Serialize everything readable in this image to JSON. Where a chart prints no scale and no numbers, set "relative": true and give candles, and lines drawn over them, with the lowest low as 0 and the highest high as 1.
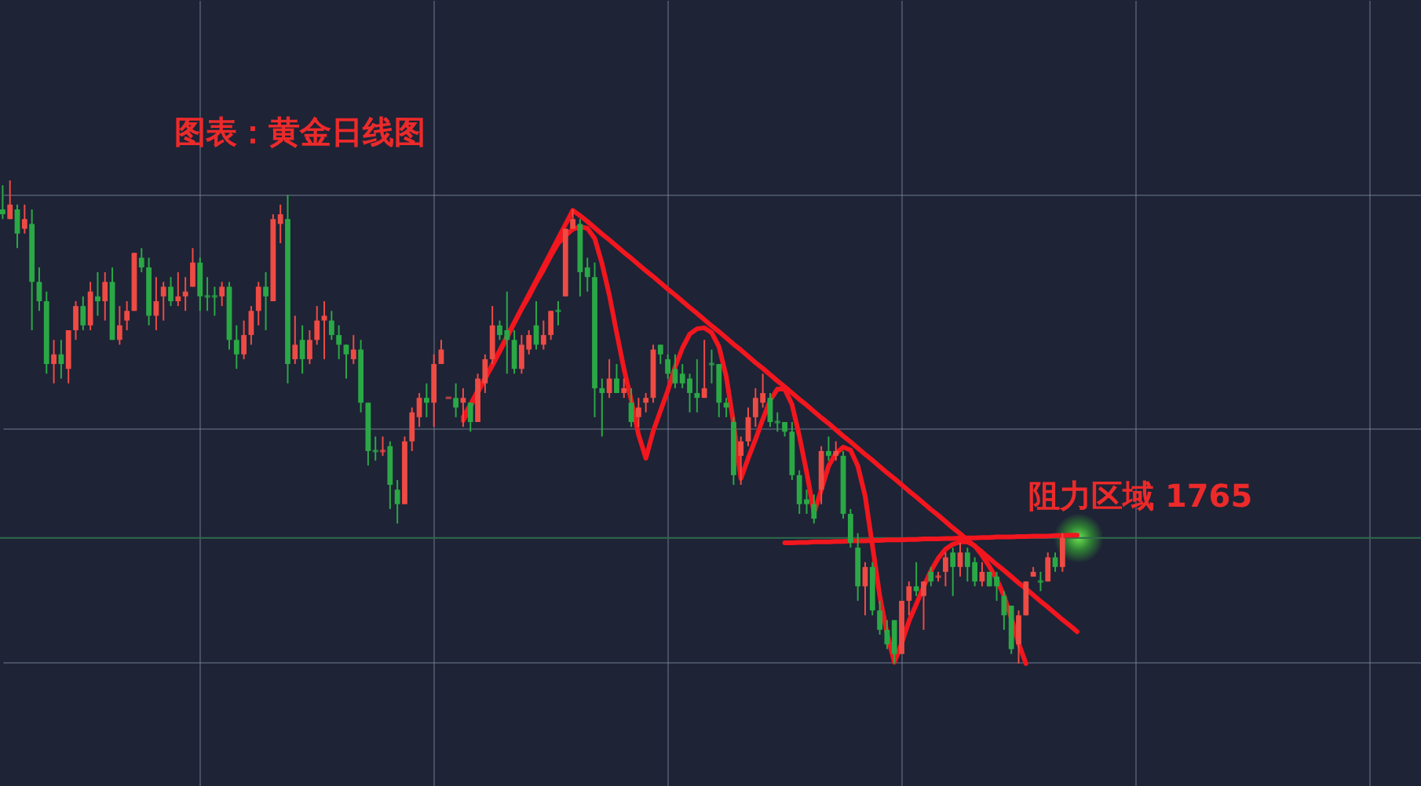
{
  "chart_data": {
    "type": "candlestick",
    "title": "图表：黄金日线图",
    "relative": true,
    "grid": true,
    "categories": [
      null,
      null,
      null,
      null,
      null,
      null,
      null,
      null,
      null,
      null,
      null,
      null,
      null,
      null,
      null,
      null,
      null,
      null,
      null,
      null,
      null,
      null,
      null,
      null,
      null,
      null,
      null,
      null,
      null,
      null,
      null,
      null,
      null,
      null,
      null,
      null,
      null,
      null,
      null,
      null,
      null,
      null,
      null,
      null,
      null,
      null,
      null,
      null,
      null,
      null,
      null,
      null,
      null,
      null,
      null,
      null,
      null,
      null,
      null,
      null,
      null,
      null,
      null,
      null,
      null,
      null,
      null,
      null,
      null,
      null,
      null,
      null,
      null,
      null,
      null,
      null,
      null,
      null,
      null,
      null,
      null,
      null,
      null,
      null,
      null,
      null,
      null,
      null,
      null,
      null,
      null,
      null,
      null,
      null,
      null,
      null,
      null,
      null,
      null,
      null,
      null,
      null,
      null,
      null,
      null,
      null,
      null,
      null,
      null,
      null,
      null,
      null,
      null,
      null,
      null,
      null,
      null,
      null,
      null,
      null,
      null,
      null,
      null,
      null,
      null,
      null,
      null,
      null,
      null,
      null,
      null,
      null,
      null,
      null,
      null,
      null,
      null,
      null,
      null,
      null,
      null,
      null,
      null,
      null,
      null,
      null,
      null,
      null
    ],
    "ohlc": [
      [
        0.94,
        0.99,
        0.92,
        0.93
      ],
      [
        0.92,
        1.0,
        0.92,
        0.95
      ],
      [
        0.94,
        0.95,
        0.86,
        0.89
      ],
      [
        0.9,
        0.95,
        0.89,
        0.92
      ],
      [
        0.91,
        0.94,
        0.69,
        0.79
      ],
      [
        0.79,
        0.82,
        0.73,
        0.75
      ],
      [
        0.75,
        0.77,
        0.6,
        0.62
      ],
      [
        0.62,
        0.67,
        0.58,
        0.64
      ],
      [
        0.64,
        0.67,
        0.59,
        0.62
      ],
      [
        0.61,
        0.69,
        0.58,
        0.69
      ],
      [
        0.69,
        0.75,
        0.67,
        0.74
      ],
      [
        0.74,
        0.76,
        0.69,
        0.7
      ],
      [
        0.7,
        0.79,
        0.69,
        0.77
      ],
      [
        0.76,
        0.81,
        0.72,
        0.75
      ],
      [
        0.75,
        0.81,
        0.71,
        0.79
      ],
      [
        0.79,
        0.82,
        0.67,
        0.67
      ],
      [
        0.67,
        0.74,
        0.66,
        0.7
      ],
      [
        0.71,
        0.75,
        0.69,
        0.73
      ],
      [
        0.73,
        0.85,
        0.73,
        0.85
      ],
      [
        0.84,
        0.86,
        0.81,
        0.82
      ],
      [
        0.82,
        0.84,
        0.7,
        0.72
      ],
      [
        0.72,
        0.8,
        0.69,
        0.75
      ],
      [
        0.76,
        0.79,
        0.71,
        0.78
      ],
      [
        0.78,
        0.8,
        0.74,
        0.75
      ],
      [
        0.75,
        0.81,
        0.74,
        0.76
      ],
      [
        0.76,
        0.8,
        0.73,
        0.77
      ],
      [
        0.78,
        0.86,
        0.78,
        0.83
      ],
      [
        0.83,
        0.84,
        0.73,
        0.76
      ],
      [
        0.76,
        0.8,
        0.73,
        0.76
      ],
      [
        0.76,
        0.78,
        0.72,
        0.76
      ],
      [
        0.76,
        0.79,
        0.74,
        0.78
      ],
      [
        0.78,
        0.79,
        0.65,
        0.67
      ],
      [
        0.67,
        0.7,
        0.61,
        0.64
      ],
      [
        0.64,
        0.71,
        0.63,
        0.68
      ],
      [
        0.68,
        0.74,
        0.66,
        0.73
      ],
      [
        0.73,
        0.79,
        0.7,
        0.78
      ],
      [
        0.78,
        0.81,
        0.69,
        0.76
      ],
      [
        0.75,
        0.93,
        0.75,
        0.92
      ],
      [
        0.91,
        0.95,
        0.87,
        0.93
      ],
      [
        0.92,
        0.97,
        0.58,
        0.62
      ],
      [
        0.63,
        0.72,
        0.62,
        0.66
      ],
      [
        0.67,
        0.7,
        0.6,
        0.63
      ],
      [
        0.63,
        0.69,
        0.62,
        0.67
      ],
      [
        0.67,
        0.74,
        0.66,
        0.71
      ],
      [
        0.71,
        0.75,
        0.63,
        0.72
      ],
      [
        0.71,
        0.73,
        0.67,
        0.68
      ],
      [
        0.68,
        0.7,
        0.63,
        0.66
      ],
      [
        0.66,
        0.66,
        0.59,
        0.64
      ],
      [
        0.63,
        0.68,
        0.62,
        0.65
      ],
      [
        0.65,
        0.67,
        0.52,
        0.54
      ],
      [
        0.54,
        0.54,
        0.41,
        0.44
      ],
      [
        0.44,
        0.47,
        0.42,
        0.44
      ],
      [
        0.44,
        0.47,
        0.43,
        0.44
      ],
      [
        0.45,
        0.46,
        0.32,
        0.37
      ],
      [
        0.36,
        0.38,
        0.29,
        0.33
      ],
      [
        0.33,
        0.47,
        0.33,
        0.46
      ],
      [
        0.46,
        0.53,
        0.44,
        0.52
      ],
      [
        0.51,
        0.56,
        0.49,
        0.55
      ],
      [
        0.55,
        0.58,
        0.51,
        0.54
      ],
      [
        0.54,
        0.64,
        0.49,
        0.62
      ],
      [
        0.62,
        0.67,
        0.62,
        0.65
      ],
      [
        0.55,
        0.55,
        0.55,
        0.55
      ],
      [
        0.55,
        0.58,
        0.51,
        0.53
      ],
      [
        0.54,
        0.57,
        0.49,
        0.55
      ],
      [
        0.54,
        0.54,
        0.48,
        0.5
      ],
      [
        0.5,
        0.6,
        0.5,
        0.59
      ],
      [
        0.58,
        0.64,
        0.56,
        0.63
      ],
      [
        0.63,
        0.74,
        0.62,
        0.7
      ],
      [
        0.7,
        0.71,
        0.67,
        0.68
      ],
      [
        0.69,
        0.77,
        0.6,
        0.67
      ],
      [
        0.67,
        0.69,
        0.6,
        0.61
      ],
      [
        0.61,
        0.68,
        0.6,
        0.66
      ],
      [
        0.65,
        0.69,
        0.64,
        0.68
      ],
      [
        0.7,
        0.75,
        0.65,
        0.66
      ],
      [
        0.66,
        0.71,
        0.65,
        0.68
      ],
      [
        0.68,
        0.73,
        0.67,
        0.73
      ],
      [
        0.73,
        0.75,
        0.7,
        0.73
      ],
      [
        0.76,
        0.9,
        0.76,
        0.9
      ],
      [
        0.9,
        0.94,
        0.9,
        0.92
      ],
      [
        0.91,
        0.92,
        0.76,
        0.81
      ],
      [
        0.82,
        0.84,
        0.77,
        0.8
      ],
      [
        0.8,
        0.83,
        0.51,
        0.57
      ],
      [
        0.57,
        0.59,
        0.47,
        0.56
      ],
      [
        0.56,
        0.63,
        0.55,
        0.59
      ],
      [
        0.59,
        0.62,
        0.56,
        0.56
      ],
      [
        0.56,
        0.59,
        0.55,
        0.57
      ],
      [
        0.54,
        0.57,
        0.49,
        0.5
      ],
      [
        0.51,
        0.55,
        0.49,
        0.53
      ],
      [
        0.54,
        0.56,
        0.52,
        0.55
      ],
      [
        0.55,
        0.66,
        0.54,
        0.65
      ],
      [
        0.66,
        0.66,
        0.62,
        0.64
      ],
      [
        0.63,
        0.64,
        0.59,
        0.6
      ],
      [
        0.61,
        0.64,
        0.57,
        0.58
      ],
      [
        0.6,
        0.62,
        0.57,
        0.58
      ],
      [
        0.59,
        0.6,
        0.52,
        0.56
      ],
      [
        0.56,
        0.63,
        0.52,
        0.55
      ],
      [
        0.55,
        0.67,
        0.55,
        0.57
      ],
      [
        0.62,
        0.65,
        0.58,
        0.62
      ],
      [
        0.62,
        0.62,
        0.51,
        0.54
      ],
      [
        0.54,
        0.55,
        0.51,
        0.53
      ],
      [
        0.5,
        0.51,
        0.37,
        0.39
      ],
      [
        0.43,
        0.47,
        0.37,
        0.46
      ],
      [
        0.46,
        0.53,
        0.45,
        0.51
      ],
      [
        0.51,
        0.57,
        0.49,
        0.55
      ],
      [
        0.54,
        0.6,
        0.53,
        0.56
      ],
      [
        0.55,
        0.56,
        0.49,
        0.5
      ],
      [
        0.5,
        0.52,
        0.48,
        0.5
      ],
      [
        0.5,
        0.5,
        0.47,
        0.48
      ],
      [
        0.48,
        0.5,
        0.38,
        0.39
      ],
      [
        0.39,
        0.4,
        0.31,
        0.33
      ],
      [
        0.34,
        0.36,
        0.31,
        0.33
      ],
      [
        0.33,
        0.35,
        0.29,
        0.3
      ],
      [
        0.36,
        0.45,
        0.33,
        0.44
      ],
      [
        0.44,
        0.47,
        0.42,
        0.43
      ],
      [
        0.43,
        0.46,
        0.42,
        0.44
      ],
      [
        0.43,
        0.44,
        0.3,
        0.31
      ],
      [
        0.31,
        0.32,
        0.24,
        0.25
      ],
      [
        0.24,
        0.27,
        0.13,
        0.16
      ],
      [
        0.16,
        0.21,
        0.1,
        0.2
      ],
      [
        0.2,
        0.21,
        0.1,
        0.11
      ],
      [
        0.11,
        0.13,
        0.06,
        0.07
      ],
      [
        0.07,
        0.09,
        0.03,
        0.04
      ],
      [
        0.09,
        0.09,
        0.0,
        0.02
      ],
      [
        0.02,
        0.13,
        0.02,
        0.13
      ],
      [
        0.13,
        0.17,
        0.1,
        0.16
      ],
      [
        0.16,
        0.21,
        0.14,
        0.15
      ],
      [
        0.14,
        0.17,
        0.07,
        0.17
      ],
      [
        0.19,
        0.2,
        0.16,
        0.17
      ],
      [
        0.18,
        0.19,
        0.17,
        0.18
      ],
      [
        0.19,
        0.23,
        0.16,
        0.22
      ],
      [
        0.23,
        0.24,
        0.14,
        0.2
      ],
      [
        0.2,
        0.25,
        0.18,
        0.23
      ],
      [
        0.23,
        0.24,
        0.17,
        0.2
      ],
      [
        0.21,
        0.22,
        0.16,
        0.17
      ],
      [
        0.17,
        0.21,
        0.16,
        0.19
      ],
      [
        0.19,
        0.19,
        0.16,
        0.16
      ],
      [
        0.18,
        0.19,
        0.13,
        0.16
      ],
      [
        0.14,
        0.15,
        0.07,
        0.1
      ],
      [
        0.12,
        0.12,
        0.02,
        0.03
      ],
      [
        0.04,
        0.11,
        0.0,
        0.1
      ],
      [
        0.1,
        0.17,
        0.1,
        0.17
      ],
      [
        0.18,
        0.2,
        0.18,
        0.19
      ],
      [
        0.17,
        0.19,
        0.15,
        0.17
      ],
      [
        0.17,
        0.23,
        0.17,
        0.22
      ],
      [
        0.22,
        0.23,
        0.19,
        0.2
      ],
      [
        0.2,
        0.27,
        0.19,
        0.26
      ],
      null,
      null
    ],
    "colors": [
      "#2ba846",
      "#ee4b44",
      "#2ba846",
      "#ee4b44",
      "#2ba846",
      "#2ba846",
      "#2ba846",
      "#ee4b44",
      "#2ba846",
      "#ee4b44",
      "#ee4b44",
      "#2ba846",
      "#ee4b44",
      "#2ba846",
      "#ee4b44",
      "#2ba846",
      "#ee4b44",
      "#ee4b44",
      "#ee4b44",
      "#2ba846",
      "#2ba846",
      "#ee4b44",
      "#ee4b44",
      "#2ba846",
      "#ee4b44",
      "#ee4b44",
      "#ee4b44",
      "#2ba846",
      "#2ba846",
      "#2ba846",
      "#ee4b44",
      "#2ba846",
      "#2ba846",
      "#ee4b44",
      "#ee4b44",
      "#ee4b44",
      "#2ba846",
      "#ee4b44",
      "#ee4b44",
      "#2ba846",
      "#ee4b44",
      "#2ba846",
      "#ee4b44",
      "#ee4b44",
      "#ee4b44",
      "#2ba846",
      "#2ba846",
      "#2ba846",
      "#ee4b44",
      "#2ba846",
      "#2ba846",
      "#2ba846",
      "#ee4b44",
      "#2ba846",
      "#2ba846",
      "#ee4b44",
      "#ee4b44",
      "#ee4b44",
      "#2ba846",
      "#ee4b44",
      "#ee4b44",
      "#ee4b44",
      "#2ba846",
      "#ee4b44",
      "#2ba846",
      "#ee4b44",
      "#ee4b44",
      "#ee4b44",
      "#2ba846",
      "#2ba846",
      "#2ba846",
      "#ee4b44",
      "#ee4b44",
      "#2ba846",
      "#ee4b44",
      "#ee4b44",
      "#2ba846",
      "#ee4b44",
      "#ee4b44",
      "#2ba846",
      "#2ba846",
      "#2ba846",
      "#2ba846",
      "#ee4b44",
      "#2ba846",
      "#ee4b44",
      "#2ba846",
      "#ee4b44",
      "#ee4b44",
      "#ee4b44",
      "#2ba846",
      "#2ba846",
      "#2ba846",
      "#2ba846",
      "#2ba846",
      "#2ba846",
      "#ee4b44",
      "#2ba846",
      "#2ba846",
      "#2ba846",
      "#2ba846",
      "#ee4b44",
      "#ee4b44",
      "#ee4b44",
      "#ee4b44",
      "#2ba846",
      "#2ba846",
      "#2ba846",
      "#2ba846",
      "#2ba846",
      "#2ba846",
      "#2ba846",
      "#ee4b44",
      "#2ba846",
      "#ee4b44",
      "#2ba846",
      "#2ba846",
      "#2ba846",
      "#ee4b44",
      "#2ba846",
      "#2ba846",
      "#2ba846",
      "#2ba846",
      "#ee4b44",
      "#ee4b44",
      "#2ba846",
      "#ee4b44",
      "#2ba846",
      "#ee4b44",
      "#ee4b44",
      "#2ba846",
      "#ee4b44",
      "#2ba846",
      "#2ba846",
      "#ee4b44",
      "#2ba846",
      "#2ba846",
      "#2ba846",
      "#2ba846",
      "#ee4b44",
      "#ee4b44",
      "#ee4b44",
      "#2ba846",
      "#ee4b44",
      "#2ba846",
      "#ee4b44",
      null,
      null
    ],
    "series": [
      {
        "type": "line",
        "color": "#f2161e",
        "values": [
          null,
          null,
          null,
          null,
          null,
          null,
          null,
          null,
          null,
          null,
          null,
          null,
          null,
          null,
          null,
          null,
          null,
          null,
          null,
          null,
          null,
          null,
          null,
          null,
          null,
          null,
          null,
          null,
          null,
          null,
          null,
          null,
          null,
          null,
          null,
          null,
          null,
          null,
          null,
          null,
          null,
          null,
          null,
          null,
          null,
          null,
          null,
          null,
          null,
          null,
          null,
          null,
          null,
          null,
          null,
          null,
          null,
          null,
          null,
          null,
          null,
          null,
          null,
          0.503,
          0.532,
          0.561,
          0.59,
          0.619,
          0.648,
          0.677,
          0.706,
          0.735,
          0.764,
          0.793,
          0.822,
          0.851,
          0.88,
          0.909,
          0.938,
          0.927,
          0.915,
          0.902,
          0.889,
          0.877,
          0.864,
          0.851,
          0.839,
          0.826,
          0.813,
          0.801,
          0.788,
          0.775,
          0.763,
          0.75,
          0.737,
          0.725,
          0.712,
          0.699,
          0.687,
          0.674,
          0.661,
          0.649,
          0.636,
          0.623,
          0.611,
          0.598,
          0.585,
          0.573,
          0.56,
          0.547,
          0.535,
          0.522,
          0.509,
          0.497,
          0.484,
          0.471,
          0.459,
          0.446,
          0.433,
          0.421,
          0.408,
          0.395,
          0.383,
          0.37,
          0.357,
          0.345,
          0.332,
          0.319,
          0.307,
          0.294,
          0.281,
          0.269,
          0.256,
          0.243,
          0.231,
          0.218,
          0.205,
          0.193,
          0.18,
          0.167,
          0.155,
          0.142,
          0.129,
          0.117,
          0.104,
          0.091,
          0.079,
          0.066
        ]
      },
      {
        "type": "line",
        "color": "#f2161e",
        "values": [
          null,
          null,
          null,
          null,
          null,
          null,
          null,
          null,
          null,
          null,
          null,
          null,
          null,
          null,
          null,
          null,
          null,
          null,
          null,
          null,
          null,
          null,
          null,
          null,
          null,
          null,
          null,
          null,
          null,
          null,
          null,
          null,
          null,
          null,
          null,
          null,
          null,
          null,
          null,
          null,
          null,
          null,
          null,
          null,
          null,
          null,
          null,
          null,
          null,
          null,
          null,
          null,
          null,
          null,
          null,
          null,
          null,
          null,
          null,
          null,
          null,
          null,
          null,
          0.51,
          0.536,
          0.565,
          0.591,
          0.617,
          0.646,
          0.675,
          0.705,
          0.734,
          0.76,
          0.789,
          0.815,
          0.844,
          0.87,
          0.886,
          0.899,
          0.904,
          0.901,
          0.88,
          0.828,
          0.763,
          0.685,
          0.61,
          0.545,
          0.474,
          0.425,
          0.481,
          0.523,
          0.565,
          0.614,
          0.653,
          0.682,
          0.693,
          0.695,
          0.685,
          0.656,
          0.594,
          0.497,
          0.383,
          0.425,
          0.464,
          0.506,
          0.545,
          0.568,
          0.568,
          0.536,
          0.471,
          0.396,
          0.312,
          0.36,
          0.409,
          0.435,
          0.448,
          0.442,
          0.409,
          0.347,
          0.244,
          0.14,
          0.062,
          0.003,
          0.042,
          0.088,
          0.123,
          0.159,
          0.192,
          0.218,
          0.237,
          0.247,
          0.252,
          0.252,
          0.244,
          0.224,
          0.201,
          0.175,
          0.14,
          0.094,
          0.042,
          0.0,
          null,
          null,
          null,
          null,
          null,
          null,
          null
        ]
      },
      {
        "type": "line",
        "color": "#f2161e",
        "values": [
          null,
          null,
          null,
          null,
          null,
          null,
          null,
          null,
          null,
          null,
          null,
          null,
          null,
          null,
          null,
          null,
          null,
          null,
          null,
          null,
          null,
          null,
          null,
          null,
          null,
          null,
          null,
          null,
          null,
          null,
          null,
          null,
          null,
          null,
          null,
          null,
          null,
          null,
          null,
          null,
          null,
          null,
          null,
          null,
          null,
          null,
          null,
          null,
          null,
          null,
          null,
          null,
          null,
          null,
          null,
          null,
          null,
          null,
          null,
          null,
          null,
          null,
          null,
          null,
          null,
          null,
          null,
          null,
          null,
          null,
          null,
          null,
          null,
          null,
          null,
          null,
          null,
          null,
          null,
          null,
          null,
          null,
          null,
          null,
          null,
          null,
          null,
          null,
          null,
          null,
          null,
          null,
          null,
          null,
          null,
          null,
          null,
          null,
          null,
          null,
          null,
          null,
          null,
          null,
          null,
          null,
          null,
          0.25,
          0.25,
          0.251,
          0.251,
          0.252,
          0.252,
          0.252,
          0.253,
          0.253,
          0.254,
          0.254,
          0.254,
          0.255,
          0.255,
          0.256,
          0.256,
          0.256,
          0.257,
          0.257,
          0.258,
          0.258,
          0.258,
          0.259,
          0.259,
          0.26,
          0.26,
          0.26,
          0.261,
          0.261,
          0.262,
          0.262,
          0.262,
          0.263,
          0.263,
          0.264,
          0.264,
          0.264,
          0.265,
          0.265,
          0.266,
          0.266
        ]
      }
    ],
    "ref_lines": [
      {
        "axis": "y",
        "value": 0.26,
        "color": "#2f6b4c"
      }
    ],
    "annotations": [
      {
        "text": "阻力区域 1765",
        "y": 0.26
      }
    ]
  }
}
